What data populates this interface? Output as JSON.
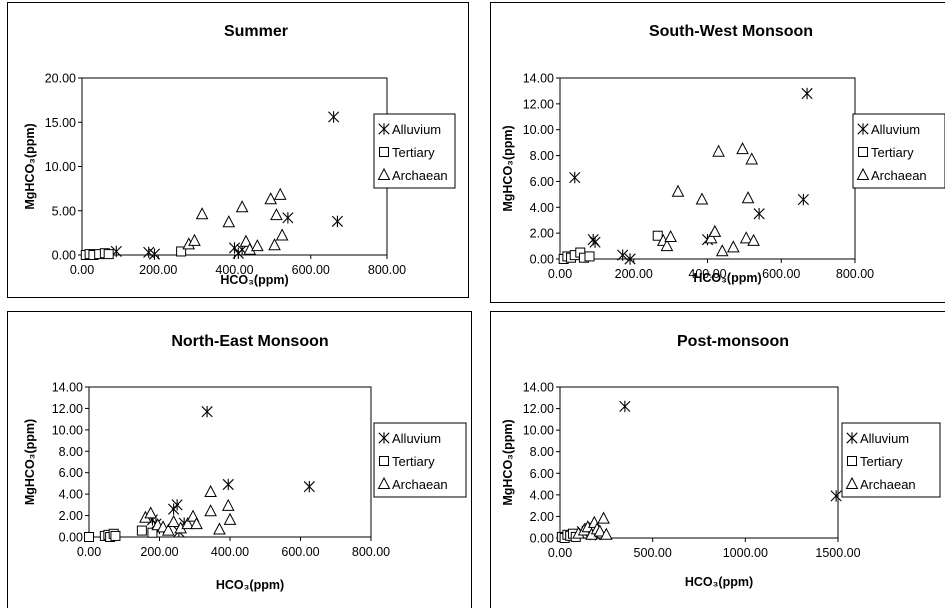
{
  "chart_data": [
    {
      "type": "scatter",
      "title": "Summer",
      "xlabel": "HCO₃(ppm)",
      "ylabel": "MgHCO₃(ppm)",
      "xlim": [
        0,
        800
      ],
      "ylim": [
        0,
        20
      ],
      "xticks": [
        "0.00",
        "200.00",
        "400.00",
        "600.00",
        "800.00"
      ],
      "yticks": [
        "0.00",
        "5.00",
        "10.00",
        "15.00",
        "20.00"
      ],
      "legend": "right",
      "series": [
        {
          "name": "Alluvium",
          "marker": "asterisk",
          "points": [
            [
              90,
              0.4
            ],
            [
              175,
              0.3
            ],
            [
              190,
              0.1
            ],
            [
              400,
              0.8
            ],
            [
              410,
              0.2
            ],
            [
              420,
              0.6
            ],
            [
              540,
              4.2
            ],
            [
              660,
              15.6
            ],
            [
              670,
              3.8
            ]
          ]
        },
        {
          "name": "Tertiary",
          "marker": "square",
          "points": [
            [
              10,
              0.0
            ],
            [
              20,
              0.1
            ],
            [
              30,
              0.0
            ],
            [
              45,
              0.1
            ],
            [
              60,
              0.2
            ],
            [
              70,
              0.1
            ],
            [
              260,
              0.4
            ]
          ]
        },
        {
          "name": "Archaean",
          "marker": "triangle",
          "points": [
            [
              280,
              1.2
            ],
            [
              295,
              1.6
            ],
            [
              315,
              4.6
            ],
            [
              385,
              3.7
            ],
            [
              420,
              5.4
            ],
            [
              430,
              1.5
            ],
            [
              440,
              0.6
            ],
            [
              460,
              1.0
            ],
            [
              495,
              6.3
            ],
            [
              505,
              1.1
            ],
            [
              510,
              4.5
            ],
            [
              520,
              6.8
            ],
            [
              525,
              2.2
            ]
          ]
        }
      ]
    },
    {
      "type": "scatter",
      "title": "South-West Monsoon",
      "xlabel": "HCO₃(ppm)",
      "ylabel": "MgHCO₃(ppm)",
      "xlim": [
        0,
        800
      ],
      "ylim": [
        0,
        14
      ],
      "xticks": [
        "0.00",
        "200.00",
        "400.00",
        "600.00",
        "800.00"
      ],
      "yticks": [
        "0.00",
        "2.00",
        "4.00",
        "6.00",
        "8.00",
        "10.00",
        "12.00",
        "14.00"
      ],
      "legend": "right",
      "series": [
        {
          "name": "Alluvium",
          "marker": "asterisk",
          "points": [
            [
              40,
              6.3
            ],
            [
              90,
              1.5
            ],
            [
              95,
              1.3
            ],
            [
              170,
              0.3
            ],
            [
              190,
              0.0
            ],
            [
              400,
              1.5
            ],
            [
              540,
              3.5
            ],
            [
              660,
              4.6
            ],
            [
              670,
              12.8
            ]
          ]
        },
        {
          "name": "Tertiary",
          "marker": "square",
          "points": [
            [
              10,
              0.0
            ],
            [
              20,
              0.2
            ],
            [
              30,
              0.1
            ],
            [
              40,
              0.3
            ],
            [
              55,
              0.5
            ],
            [
              65,
              0.1
            ],
            [
              80,
              0.2
            ],
            [
              265,
              1.8
            ]
          ]
        },
        {
          "name": "Archaean",
          "marker": "triangle",
          "points": [
            [
              280,
              1.4
            ],
            [
              290,
              1.0
            ],
            [
              300,
              1.7
            ],
            [
              320,
              5.2
            ],
            [
              385,
              4.6
            ],
            [
              410,
              1.6
            ],
            [
              420,
              2.1
            ],
            [
              430,
              8.3
            ],
            [
              440,
              0.6
            ],
            [
              470,
              0.9
            ],
            [
              495,
              8.5
            ],
            [
              505,
              1.6
            ],
            [
              510,
              4.7
            ],
            [
              520,
              7.7
            ],
            [
              525,
              1.4
            ]
          ]
        }
      ]
    },
    {
      "type": "scatter",
      "title": "North-East Monsoon",
      "xlabel": "HCO₃(ppm)",
      "ylabel": "MgHCO₃(ppm)",
      "xlim": [
        0,
        800
      ],
      "ylim": [
        0,
        14
      ],
      "xticks": [
        "0.00",
        "200.00",
        "400.00",
        "600.00",
        "800.00"
      ],
      "yticks": [
        "0.00",
        "2.00",
        "4.00",
        "6.00",
        "8.00",
        "10.00",
        "12.00",
        "14.00"
      ],
      "legend": "right",
      "series": [
        {
          "name": "Alluvium",
          "marker": "asterisk",
          "points": [
            [
              180,
              1.6
            ],
            [
              190,
              1.2
            ],
            [
              200,
              0.8
            ],
            [
              240,
              2.6
            ],
            [
              250,
              3.0
            ],
            [
              255,
              0.5
            ],
            [
              270,
              1.3
            ],
            [
              335,
              11.7
            ],
            [
              395,
              4.9
            ],
            [
              625,
              4.7
            ]
          ]
        },
        {
          "name": "Tertiary",
          "marker": "square",
          "points": [
            [
              0,
              0.0
            ],
            [
              45,
              0.1
            ],
            [
              55,
              0.2
            ],
            [
              60,
              0.0
            ],
            [
              70,
              0.3
            ],
            [
              75,
              0.1
            ],
            [
              150,
              0.6
            ],
            [
              180,
              0.4
            ]
          ]
        },
        {
          "name": "Archaean",
          "marker": "triangle",
          "points": [
            [
              160,
              1.8
            ],
            [
              175,
              2.2
            ],
            [
              195,
              1.1
            ],
            [
              210,
              0.9
            ],
            [
              225,
              0.6
            ],
            [
              240,
              1.4
            ],
            [
              260,
              0.8
            ],
            [
              280,
              1.2
            ],
            [
              295,
              1.9
            ],
            [
              305,
              1.2
            ],
            [
              345,
              4.2
            ],
            [
              345,
              2.4
            ],
            [
              370,
              0.7
            ],
            [
              395,
              2.9
            ],
            [
              400,
              1.6
            ]
          ]
        }
      ]
    },
    {
      "type": "scatter",
      "title": "Post-monsoon",
      "xlabel": "HCO₃(ppm)",
      "ylabel": "MgHCO₃(ppm)",
      "xlim": [
        0,
        1500
      ],
      "ylim": [
        0,
        14
      ],
      "xticks": [
        "0.00",
        "500.00",
        "1000.00",
        "1500.00"
      ],
      "yticks": [
        "0.00",
        "2.00",
        "4.00",
        "6.00",
        "8.00",
        "10.00",
        "12.00",
        "14.00"
      ],
      "legend": "right",
      "series": [
        {
          "name": "Alluvium",
          "marker": "asterisk",
          "points": [
            [
              120,
              0.6
            ],
            [
              160,
              0.9
            ],
            [
              190,
              0.3
            ],
            [
              350,
              12.2
            ],
            [
              1490,
              3.9
            ]
          ]
        },
        {
          "name": "Tertiary",
          "marker": "square",
          "points": [
            [
              10,
              0.1
            ],
            [
              25,
              0.0
            ],
            [
              40,
              0.3
            ],
            [
              55,
              0.2
            ],
            [
              70,
              0.4
            ],
            [
              85,
              0.1
            ]
          ]
        },
        {
          "name": "Archaean",
          "marker": "triangle",
          "points": [
            [
              100,
              0.4
            ],
            [
              130,
              0.7
            ],
            [
              150,
              1.0
            ],
            [
              170,
              0.3
            ],
            [
              185,
              1.4
            ],
            [
              200,
              0.8
            ],
            [
              215,
              0.6
            ],
            [
              235,
              1.8
            ],
            [
              250,
              0.3
            ]
          ]
        }
      ]
    }
  ]
}
